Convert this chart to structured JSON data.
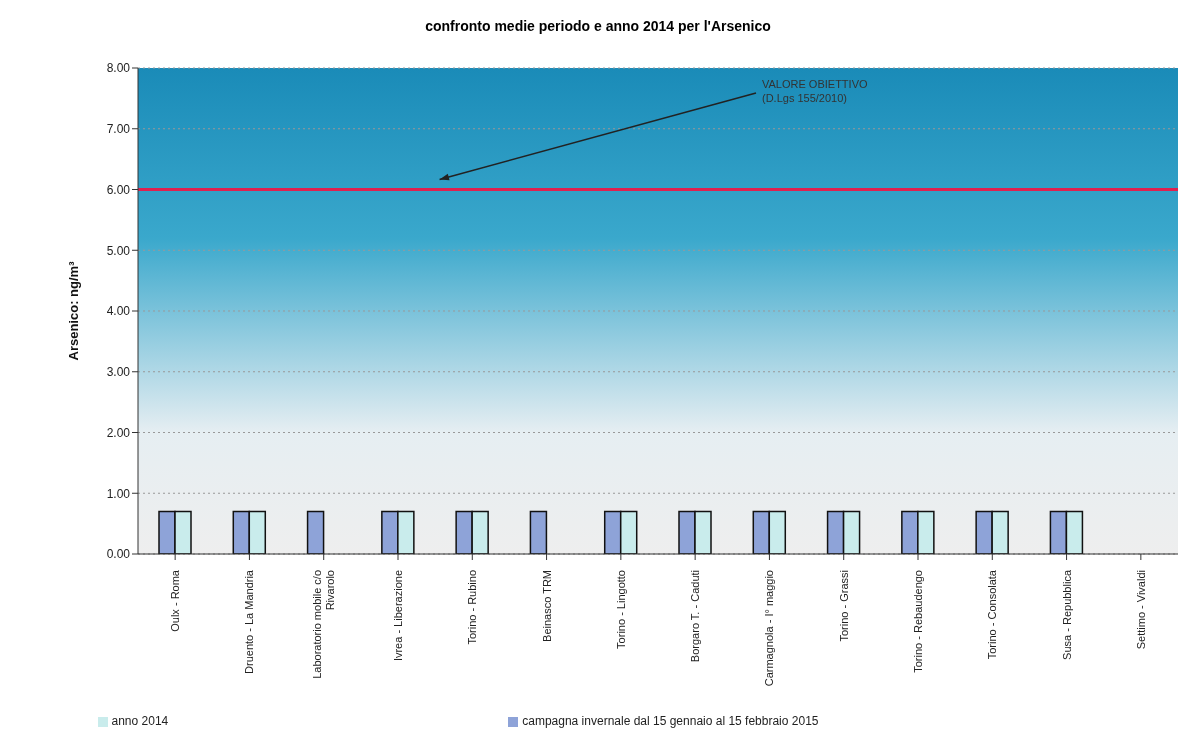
{
  "chart_data": {
    "type": "bar",
    "title": "confronto medie periodo e anno 2014 per l'Arsenico",
    "ylabel": "Arsenico: ng/m³",
    "categories": [
      "Oulx - Roma",
      "Druento - La Mandria",
      "Laboratorio mobile c/o Rivarolo",
      "Ivrea - Liberazione",
      "Torino - Rubino",
      "Beinasco TRM",
      "Torino - Lingotto",
      "Borgaro T. - Caduti",
      "Carmagnola - I° maggio",
      "Torino - Grassi",
      "Torino - Rebaudengo",
      "Torino - Consolata",
      "Susa - Repubblica",
      "Settimo - Vivaldi"
    ],
    "series": [
      {
        "name": "campagna invernale dal 15 gennaio al 15 febbraio 2015",
        "color": "#8ea3d8",
        "values": [
          0.7,
          0.7,
          0.7,
          0.7,
          0.7,
          0.7,
          0.7,
          0.7,
          0.7,
          0.7,
          0.7,
          0.7,
          0.7,
          null
        ]
      },
      {
        "name": "anno 2014",
        "color": "#c9ecec",
        "values": [
          0.7,
          0.7,
          null,
          0.7,
          0.7,
          null,
          0.7,
          0.7,
          0.7,
          0.7,
          0.7,
          0.7,
          0.7,
          null
        ]
      }
    ],
    "ylim": [
      0,
      8
    ],
    "yticks": [
      {
        "value": 0,
        "label": "0.00"
      },
      {
        "value": 1,
        "label": "1.00"
      },
      {
        "value": 2,
        "label": "2.00"
      },
      {
        "value": 3,
        "label": "3.00"
      },
      {
        "value": 4,
        "label": "4.00"
      },
      {
        "value": 5,
        "label": "5.00"
      },
      {
        "value": 6,
        "label": "6.00"
      },
      {
        "value": 7,
        "label": "7.00"
      },
      {
        "value": 8,
        "label": "8.00"
      }
    ],
    "grid": "y",
    "legend": "bottom",
    "ref_lines": [
      {
        "axis": "y",
        "value": 6,
        "label": "VALORE OBIETTIVO\n(D.Lgs 155/2010)",
        "color": "#e0204f"
      }
    ]
  }
}
